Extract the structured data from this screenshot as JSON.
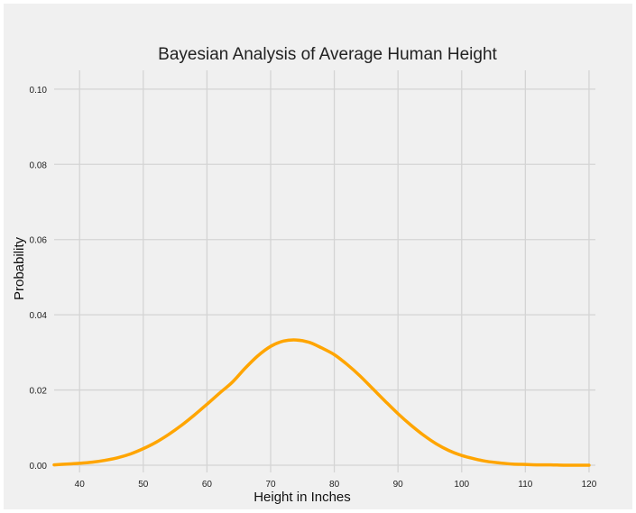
{
  "chart_data": {
    "type": "line",
    "title": "Bayesian Analysis of Average Human Height",
    "xlabel": "Height in Inches",
    "ylabel": "Probability",
    "xlim": [
      36,
      121
    ],
    "ylim": [
      0,
      0.105
    ],
    "xticks": [
      40,
      50,
      60,
      70,
      80,
      90,
      100,
      110,
      120
    ],
    "xtick_labels": [
      "40",
      "50",
      "60",
      "70",
      "80",
      "90",
      "100",
      "110",
      "120"
    ],
    "yticks": [
      0,
      0.02,
      0.04,
      0.06,
      0.08,
      0.1
    ],
    "ytick_labels": [
      "0.00",
      "0.02",
      "0.04",
      "0.06",
      "0.08",
      "0.10"
    ],
    "grid": true,
    "legend": "none",
    "colors": {
      "figure_background": "#ffffff",
      "plot_background": "#f0f0f0",
      "grid": "#d4d4d4",
      "line": "#ffa500"
    },
    "series": [
      {
        "x": [
          36,
          38,
          40,
          42,
          44,
          46,
          48,
          50,
          52,
          54,
          56,
          58,
          60,
          62,
          64,
          66,
          68,
          70,
          72,
          74,
          76,
          78,
          80,
          82,
          84,
          86,
          88,
          90,
          92,
          94,
          96,
          98,
          100,
          102,
          104,
          106,
          108,
          110,
          112,
          114,
          116,
          118,
          120
        ],
        "y": [
          0.0001,
          0.0003,
          0.0005,
          0.0008,
          0.0013,
          0.002,
          0.003,
          0.0044,
          0.0061,
          0.0082,
          0.0106,
          0.0133,
          0.0162,
          0.0192,
          0.0221,
          0.0258,
          0.0291,
          0.0316,
          0.033,
          0.0333,
          0.0327,
          0.0312,
          0.0294,
          0.0268,
          0.0238,
          0.0204,
          0.017,
          0.0137,
          0.0107,
          0.008,
          0.0057,
          0.0039,
          0.0026,
          0.0017,
          0.001,
          0.0006,
          0.0003,
          0.0002,
          0.0001,
          0.0001,
          0.0,
          0.0,
          0.0
        ]
      }
    ]
  }
}
